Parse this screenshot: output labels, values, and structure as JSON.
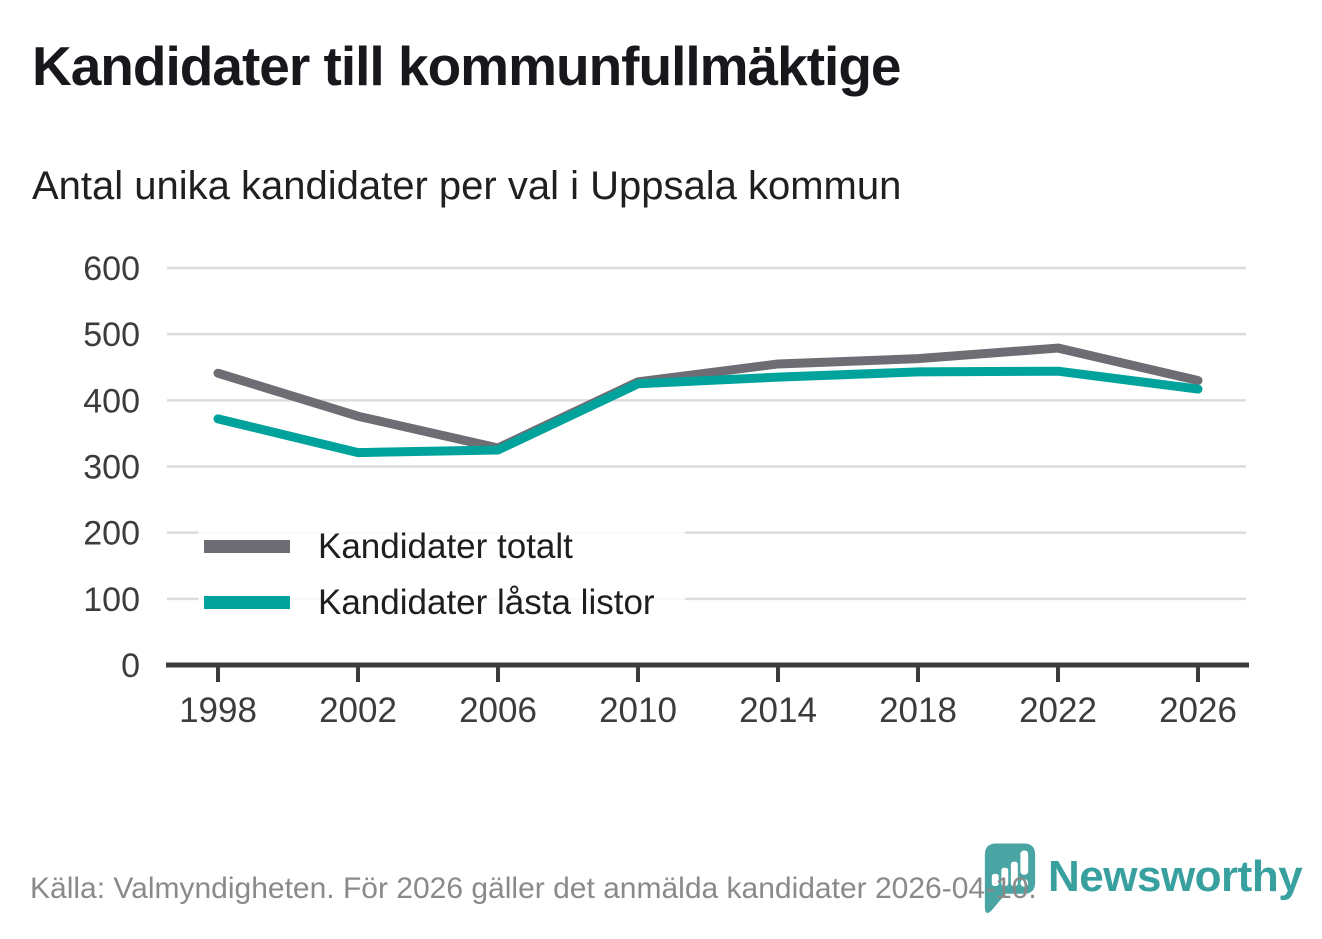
{
  "chart_data": {
    "type": "line",
    "title": "Kandidater till kommunfullmäktige",
    "subtitle": "Antal unika kandidater per val i Uppsala kommun",
    "x": [
      1998,
      2002,
      2006,
      2010,
      2014,
      2018,
      2022,
      2026
    ],
    "series": [
      {
        "name": "Kandidater totalt",
        "color": "#6e6d74",
        "values": [
          441,
          376,
          328,
          428,
          455,
          463,
          479,
          430
        ]
      },
      {
        "name": "Kandidater låsta listor",
        "color": "#00a39b",
        "values": [
          372,
          321,
          325,
          425,
          435,
          443,
          444,
          417
        ]
      }
    ],
    "ylim": [
      0,
      600
    ],
    "yticks": [
      0,
      100,
      200,
      300,
      400,
      500,
      600
    ],
    "grid": true,
    "legend_position": "inside-left-bottom",
    "colors": {
      "gridline": "#dcdcdc",
      "axis": "#3b3b3b",
      "series_total": "#6e6d74",
      "series_locked": "#00a39b"
    }
  },
  "footer": {
    "source_text": "Källa: Valmyndigheten. För 2026 gäller det anmälda kandidater 2026-04-10."
  },
  "branding": {
    "logo_text": "Newsworthy",
    "logo_color": "#38a09f",
    "logo_icon": "bar-chart-pin-icon"
  }
}
